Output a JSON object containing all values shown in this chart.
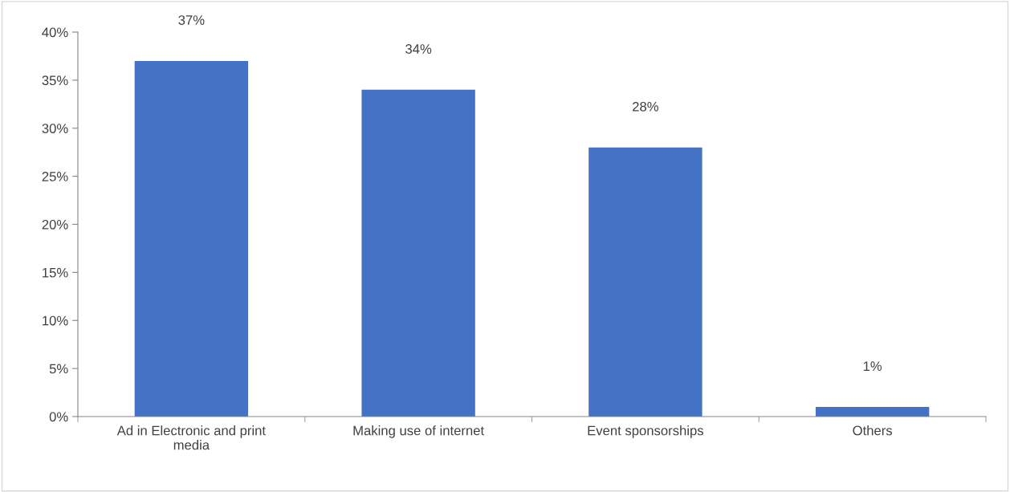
{
  "chart_data": {
    "type": "bar",
    "categories": [
      "Ad in Electronic and print\nmedia",
      "Making use of internet",
      "Event sponsorships",
      "Others"
    ],
    "values": [
      37,
      34,
      28,
      1
    ],
    "value_labels": [
      "37%",
      "34%",
      "28%",
      "1%"
    ],
    "color": "#4472c4",
    "ylim": [
      0,
      40
    ],
    "yticks": [
      {
        "value": 0,
        "label": "0%"
      },
      {
        "value": 5,
        "label": "5%"
      },
      {
        "value": 10,
        "label": "10%"
      },
      {
        "value": 15,
        "label": "15%"
      },
      {
        "value": 20,
        "label": "20%"
      },
      {
        "value": 25,
        "label": "25%"
      },
      {
        "value": 30,
        "label": "30%"
      },
      {
        "value": 35,
        "label": "35%"
      },
      {
        "value": 40,
        "label": "40%"
      }
    ],
    "grid": false,
    "legend": false
  }
}
